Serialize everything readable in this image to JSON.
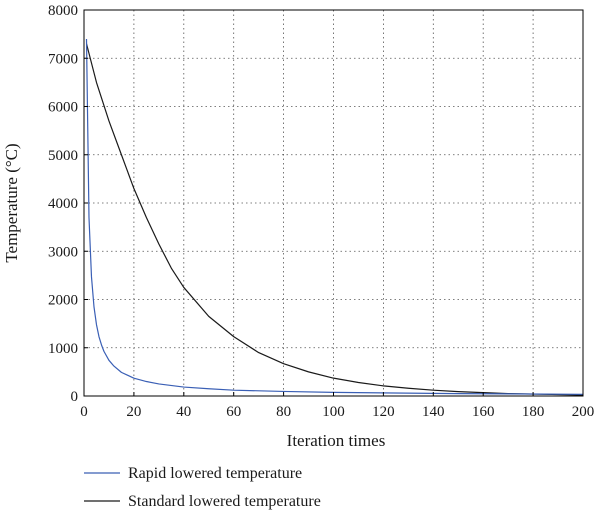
{
  "chart_data": {
    "type": "line",
    "title": "",
    "xlabel": "Iteration times",
    "ylabel": "Temperature (°C)",
    "xlim": [
      0,
      200
    ],
    "ylim": [
      0,
      8000
    ],
    "x_ticks": [
      0,
      20,
      40,
      60,
      80,
      100,
      120,
      140,
      160,
      180,
      200
    ],
    "y_ticks": [
      0,
      1000,
      2000,
      3000,
      4000,
      5000,
      6000,
      7000,
      8000
    ],
    "grid": true,
    "legend_position": "bottom-left",
    "series": [
      {
        "name": "Rapid lowered temperature",
        "color": "#3a5fb5",
        "x": [
          1,
          2,
          3,
          4,
          5,
          6,
          7,
          8,
          10,
          12,
          15,
          20,
          25,
          30,
          40,
          50,
          60,
          80,
          100,
          150,
          200
        ],
        "y": [
          7400,
          3700,
          2470,
          1850,
          1480,
          1230,
          1060,
          925,
          740,
          620,
          490,
          370,
          300,
          250,
          185,
          150,
          120,
          95,
          75,
          50,
          35
        ]
      },
      {
        "name": "Standard lowered temperature",
        "color": "#1a1a1a",
        "x": [
          1,
          5,
          10,
          15,
          20,
          25,
          30,
          35,
          40,
          50,
          60,
          70,
          80,
          90,
          100,
          110,
          120,
          130,
          140,
          150,
          160,
          170,
          180,
          190,
          200
        ],
        "y": [
          7300,
          6500,
          5700,
          5000,
          4300,
          3700,
          3150,
          2650,
          2250,
          1650,
          1230,
          900,
          670,
          500,
          370,
          280,
          210,
          160,
          120,
          90,
          70,
          50,
          40,
          30,
          20
        ]
      }
    ]
  }
}
